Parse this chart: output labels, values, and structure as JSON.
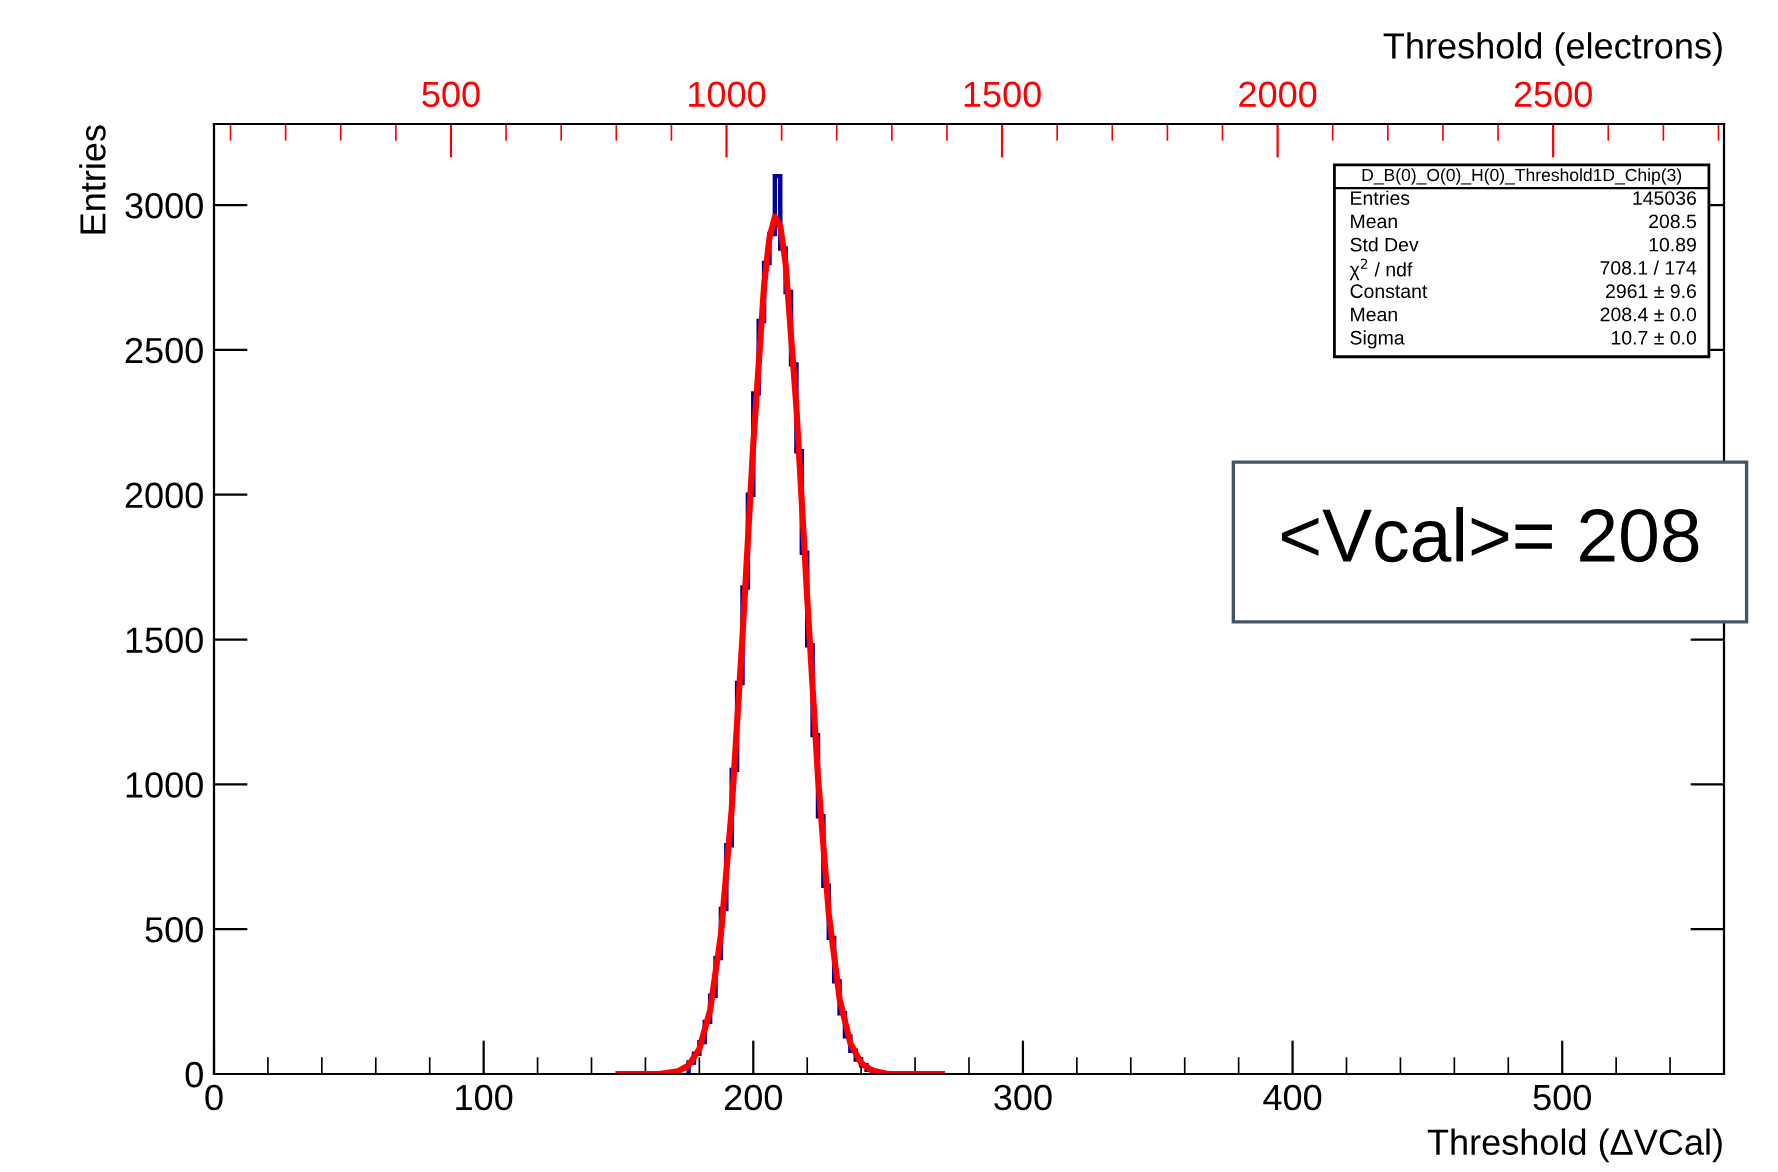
{
  "chart_data": {
    "type": "histogram",
    "xlabel": "Threshold (ΔVCal)",
    "ylabel": "Entries",
    "x2label": "Threshold (electrons)",
    "bins": [
      176,
      178,
      180,
      182,
      184,
      186,
      188,
      190,
      192,
      194,
      196,
      198,
      200,
      202,
      204,
      206,
      208,
      210,
      212,
      214,
      216,
      218,
      220,
      222,
      224,
      226,
      228,
      230,
      232,
      234,
      236,
      238,
      240,
      242,
      244
    ],
    "values": [
      40,
      70,
      110,
      180,
      270,
      400,
      570,
      790,
      1050,
      1350,
      1680,
      2000,
      2350,
      2600,
      2800,
      2900,
      3100,
      2850,
      2700,
      2450,
      2150,
      1800,
      1480,
      1170,
      890,
      650,
      470,
      320,
      210,
      130,
      80,
      50,
      30,
      15
    ],
    "color": "#000099",
    "series": [
      {
        "type": "line",
        "color": "#ff0000",
        "x": [
          150,
          165,
          172,
          176,
          180,
          184,
          188,
          192,
          196,
          200,
          204,
          206,
          208,
          210,
          212,
          216,
          220,
          224,
          228,
          232,
          236,
          240,
          244,
          250,
          260,
          270
        ],
        "values": [
          0,
          0,
          9,
          30,
          87,
          220,
          481,
          914,
          1512,
          2176,
          2721,
          2888,
          2960,
          2928,
          2797,
          2300,
          1645,
          1024,
          553,
          260,
          106,
          38,
          12,
          0,
          0,
          0
        ]
      }
    ],
    "xlim": [
      0,
      560
    ],
    "xticks": [
      0,
      100,
      200,
      300,
      400,
      500
    ],
    "ylim": [
      0,
      3280
    ],
    "yticks": [
      0,
      500,
      1000,
      1500,
      2000,
      2500,
      3000
    ],
    "x2lim": [
      70,
      2810
    ],
    "x2ticks": [
      500,
      1000,
      1500,
      2000,
      2500
    ],
    "grid": false,
    "annotations": [
      "D_B(0)_O(0)_H(0)_Threshold1D_Chip(3)",
      "Entries",
      "145036",
      "Mean",
      "208.5",
      "Std Dev",
      "10.89",
      "χ$^{2}$ / ndf",
      "708.1 / 174",
      "Constant",
      "2961 ± 9.6",
      "Mean",
      "208.4 ± 0.0",
      "Sigma",
      "10.7 ± 0.0",
      "<Vcal>= 208"
    ]
  }
}
